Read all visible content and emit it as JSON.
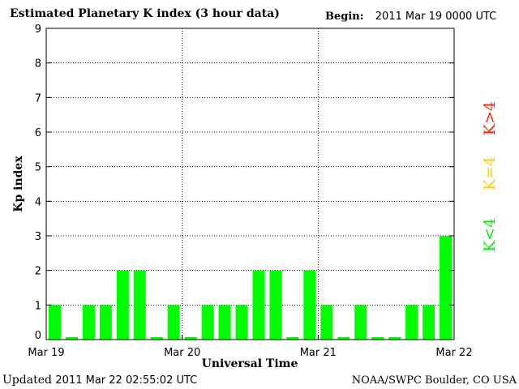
{
  "header": {
    "title": "Estimated Planetary K index (3 hour data)",
    "begin_label": "Begin:",
    "begin_value": "2011 Mar 19 0000 UTC"
  },
  "footer": {
    "updated_label": "Updated",
    "updated_value": "2011 Mar 22 02:55:02 UTC",
    "source": "NOAA/SWPC Boulder, CO USA"
  },
  "legend": {
    "items": [
      {
        "label": "K<4",
        "color": "#00ee00"
      },
      {
        "label": "K=4",
        "color": "#ffcc00"
      },
      {
        "label": "K>4",
        "color": "#ff2200"
      }
    ]
  },
  "chart_data": {
    "type": "bar",
    "title": "Estimated Planetary K index (3 hour data)",
    "xlabel": "Universal Time",
    "ylabel": "Kp index",
    "ylim": [
      0,
      9
    ],
    "yticks": [
      0,
      1,
      2,
      3,
      4,
      5,
      6,
      7,
      8,
      9
    ],
    "xtick_labels": [
      "Mar 19",
      "Mar 20",
      "Mar 21",
      "Mar 22"
    ],
    "interval": "3 hour",
    "bar_color": "#00ff00",
    "grid": "dotted, at every Kp integer and day boundary",
    "categories": [
      "Mar 19 00",
      "Mar 19 03",
      "Mar 19 06",
      "Mar 19 09",
      "Mar 19 12",
      "Mar 19 15",
      "Mar 19 18",
      "Mar 19 21",
      "Mar 20 00",
      "Mar 20 03",
      "Mar 20 06",
      "Mar 20 09",
      "Mar 20 12",
      "Mar 20 15",
      "Mar 20 18",
      "Mar 20 21",
      "Mar 21 00",
      "Mar 21 03",
      "Mar 21 06",
      "Mar 21 09",
      "Mar 21 12",
      "Mar 21 15",
      "Mar 21 18",
      "Mar 21 21"
    ],
    "values": [
      1,
      0,
      1,
      1,
      2,
      2,
      0,
      1,
      0,
      1,
      1,
      1,
      2,
      2,
      0,
      2,
      1,
      0,
      1,
      0,
      0,
      1,
      1,
      3
    ]
  }
}
